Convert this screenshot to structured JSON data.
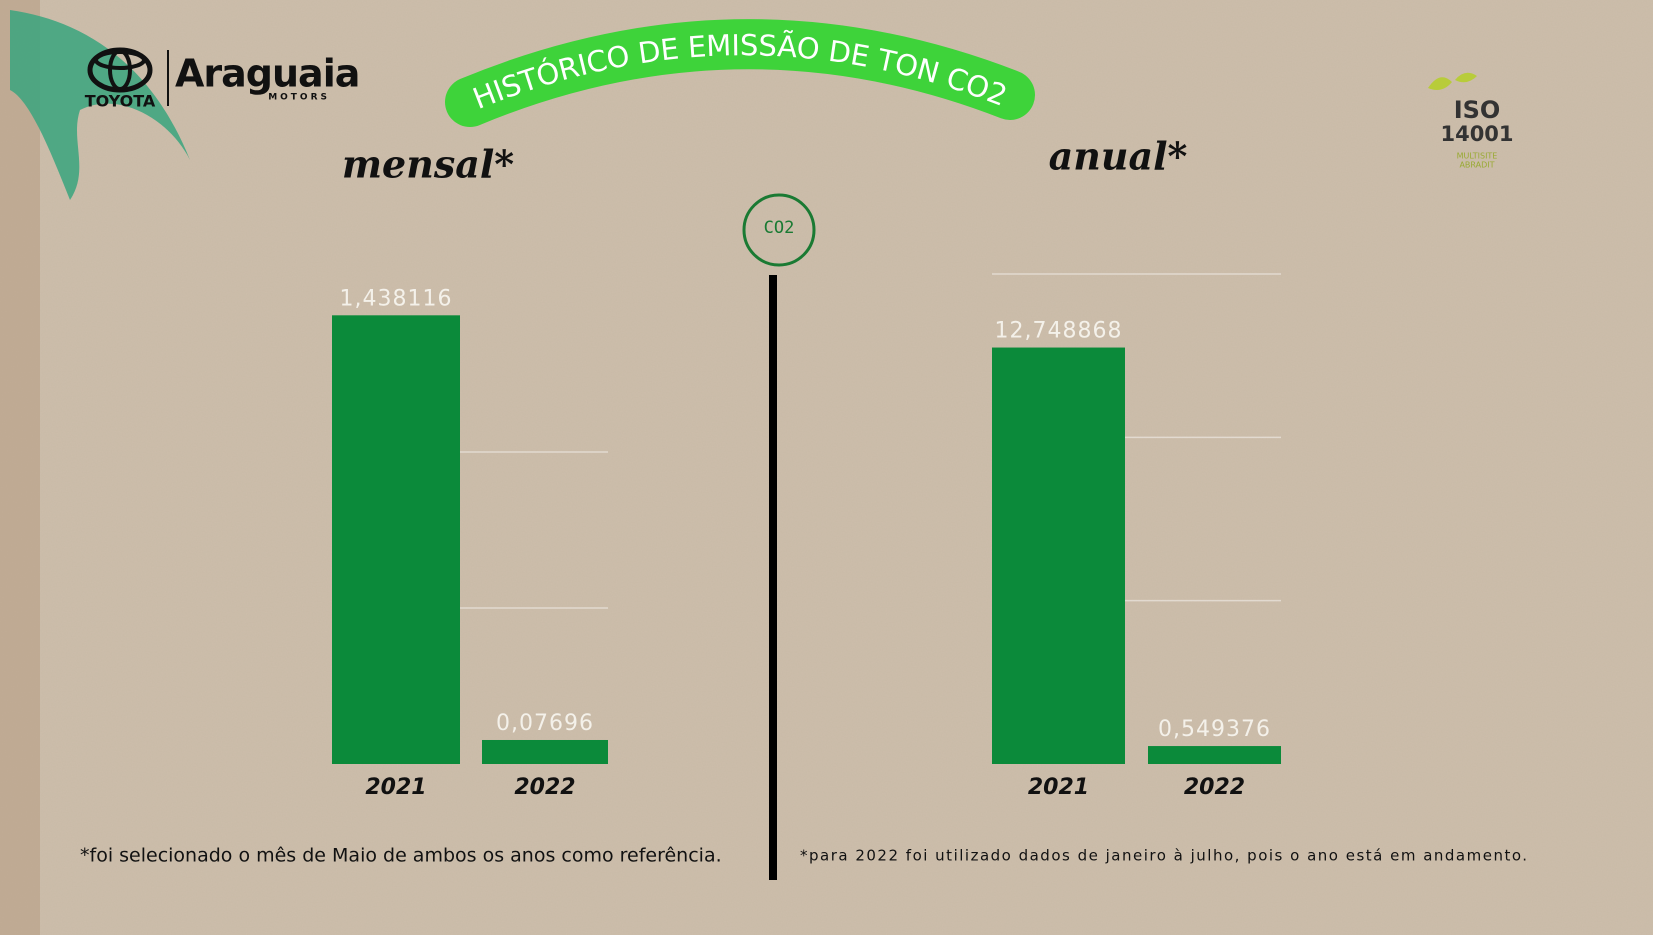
{
  "header": {
    "title": "HISTÓRICO DE EMISSÃO DE TON CO2",
    "brand": "TOYOTA",
    "dealer": "Araguaia",
    "dealer_sub": "MOTORS",
    "iso": "ISO",
    "iso_number": "14001",
    "iso_sub1": "MULTISITE",
    "iso_sub2": "ABRADIT",
    "icon": "CO2"
  },
  "chart_data": [
    {
      "type": "bar",
      "title": "mensal*",
      "categories": [
        "2021",
        "2022"
      ],
      "values": [
        1.438116,
        0.07696
      ],
      "value_labels": [
        "1,438116",
        "0,07696"
      ],
      "color": "#0b8a3a",
      "ylim": [
        0,
        1.5
      ],
      "yticks": [
        0.5,
        1
      ],
      "grid": true,
      "note": "*foi selecionado o mês de  Maio de ambos os anos como referência."
    },
    {
      "type": "bar",
      "title": "anual*",
      "categories": [
        "2021",
        "2022"
      ],
      "values": [
        12.748868,
        0.549376
      ],
      "value_labels": [
        "12,748868",
        "0,549376"
      ],
      "color": "#0b8a3a",
      "ylim": [
        0,
        15
      ],
      "yticks": [
        5,
        10,
        15
      ],
      "grid": true,
      "note": "*para 2022 foi utilizado dados de janeiro à julho, pois o ano está em andamento."
    }
  ]
}
